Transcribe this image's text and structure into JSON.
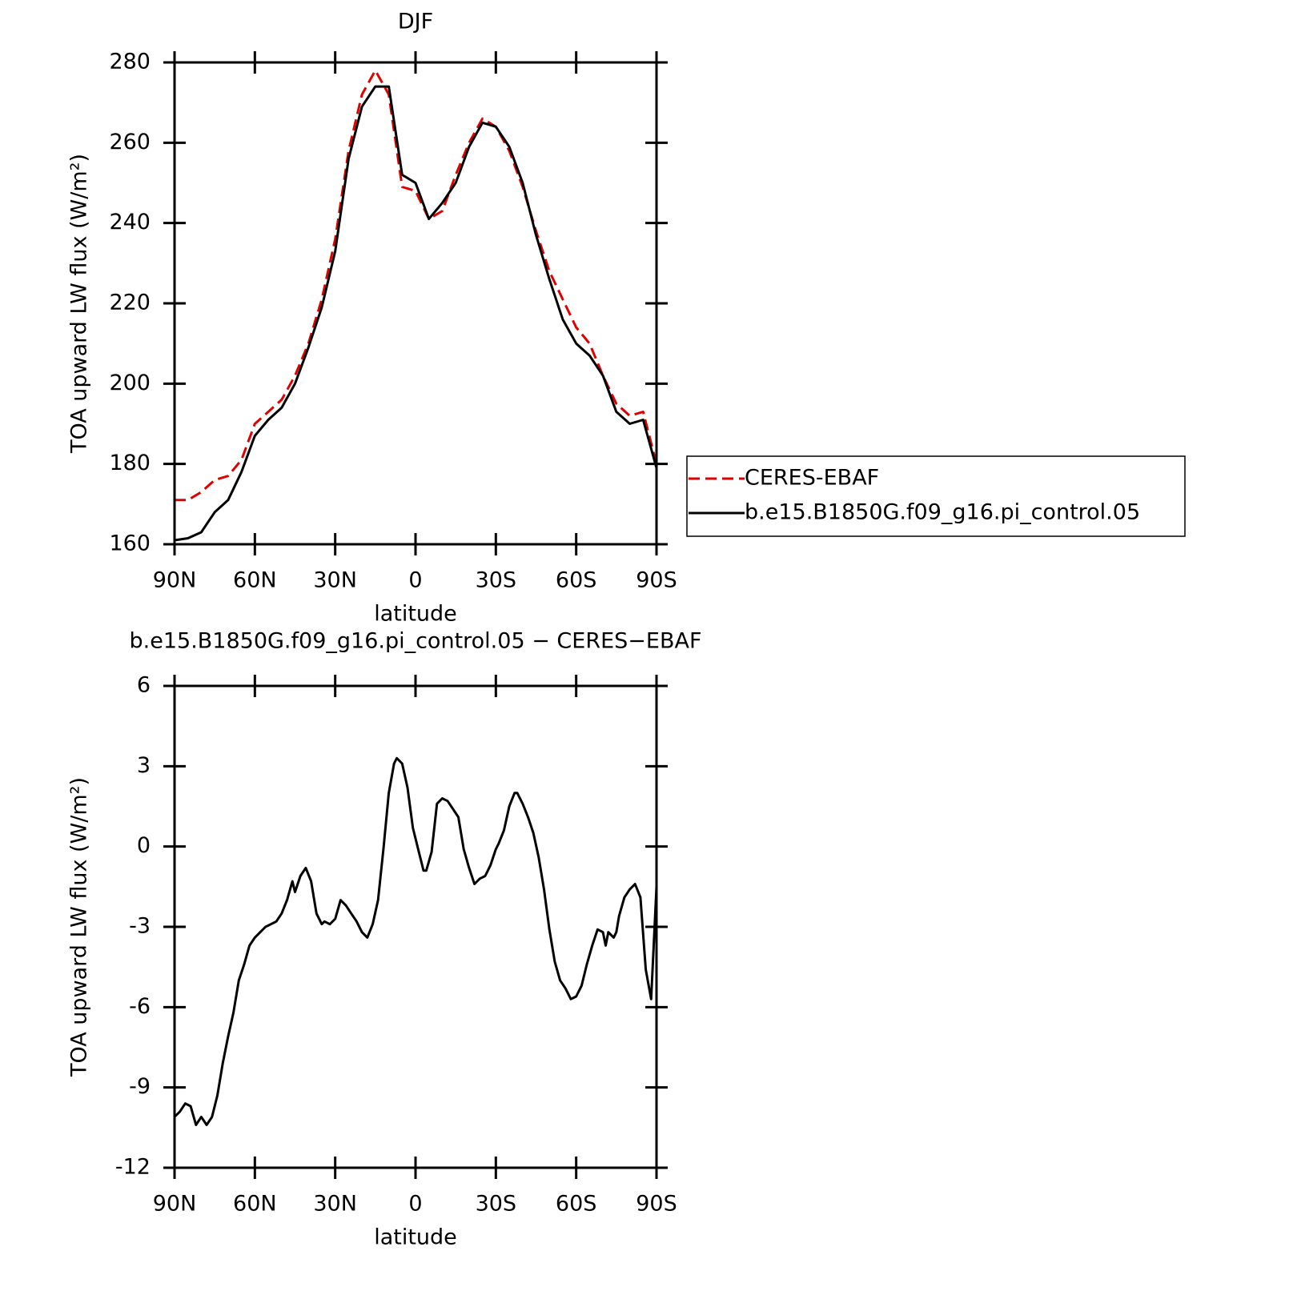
{
  "chart_data": [
    {
      "type": "line",
      "title": "DJF",
      "x_label": "latitude",
      "y_label": "TOA upward LW flux (W/m²)",
      "x": [
        90,
        85,
        80,
        75,
        70,
        65,
        60,
        55,
        50,
        45,
        40,
        35,
        30,
        25,
        20,
        15,
        10,
        5,
        0,
        -5,
        -10,
        -15,
        -20,
        -25,
        -30,
        -35,
        -40,
        -45,
        -50,
        -55,
        -60,
        -65,
        -70,
        -75,
        -80,
        -85,
        -90
      ],
      "series": [
        {
          "name": "CERES-EBAF",
          "color": "#e00000",
          "dashed": true,
          "values": [
            171,
            171,
            173,
            176,
            177,
            181,
            190,
            193,
            196,
            202,
            210,
            221,
            236,
            258,
            272,
            278,
            272,
            249,
            248,
            241,
            243,
            252,
            260,
            266,
            264,
            258,
            249,
            238,
            228,
            221,
            214,
            210,
            202,
            195,
            192,
            193,
            180
          ]
        },
        {
          "name": "b.e15.B1850G.f09_g16.pi_control.05",
          "color": "#000000",
          "dashed": false,
          "values": [
            161,
            161.5,
            163,
            168,
            171,
            178,
            187,
            191,
            194,
            200,
            209,
            219,
            233,
            256,
            269,
            274,
            274,
            252,
            250,
            241,
            245,
            250,
            259,
            265,
            264,
            259,
            250,
            237,
            226,
            216,
            210,
            207,
            202,
            193,
            190,
            191,
            179
          ]
        }
      ],
      "xlim": [
        90,
        -90
      ],
      "xticks": [
        {
          "value": 90,
          "label": "90N"
        },
        {
          "value": 60,
          "label": "60N"
        },
        {
          "value": 30,
          "label": "30N"
        },
        0,
        {
          "value": -30,
          "label": "30S"
        },
        {
          "value": -60,
          "label": "60S"
        },
        {
          "value": -90,
          "label": "90S"
        }
      ],
      "ylim": [
        160,
        280
      ],
      "yticks": [
        160,
        180,
        200,
        220,
        240,
        260,
        280
      ],
      "legend": "right"
    },
    {
      "type": "line",
      "title": "b.e15.B1850G.f09_g16.pi_control.05 − CERES−EBAF",
      "x_label": "latitude",
      "y_label": "TOA upward LW flux (W/m²)",
      "x": [
        90,
        88,
        86,
        84,
        82,
        80,
        78,
        76,
        74,
        72,
        70,
        68,
        66,
        64,
        62,
        60,
        58,
        56,
        54,
        52,
        50,
        48,
        46,
        45,
        43,
        41,
        39,
        37,
        35,
        34,
        32,
        30,
        28,
        26,
        24,
        22,
        20,
        18,
        16,
        14,
        12,
        10,
        8,
        7,
        5,
        3,
        1,
        -1,
        -3,
        -4,
        -6,
        -8,
        -10,
        -12,
        -14,
        -16,
        -18,
        -20,
        -22,
        -24,
        -26,
        -28,
        -30,
        -31,
        -33,
        -35,
        -37,
        -38,
        -40,
        -42,
        -44,
        -46,
        -48,
        -50,
        -52,
        -54,
        -56,
        -58,
        -60,
        -62,
        -64,
        -66,
        -68,
        -70,
        -71,
        -72,
        -74,
        -75,
        -76,
        -78,
        -80,
        -82,
        -84,
        -86,
        -88,
        -90
      ],
      "values": [
        -10.1,
        -9.9,
        -9.6,
        -9.7,
        -10.4,
        -10.1,
        -10.4,
        -10.1,
        -9.3,
        -8.1,
        -7.1,
        -6.2,
        -5.0,
        -4.4,
        -3.7,
        -3.4,
        -3.2,
        -3.0,
        -2.9,
        -2.8,
        -2.5,
        -2.0,
        -1.3,
        -1.7,
        -1.1,
        -0.8,
        -1.3,
        -2.5,
        -2.9,
        -2.8,
        -2.9,
        -2.7,
        -2.0,
        -2.2,
        -2.5,
        -2.8,
        -3.2,
        -3.4,
        -2.9,
        -2.0,
        -0.1,
        2.0,
        3.1,
        3.3,
        3.1,
        2.2,
        0.7,
        -0.1,
        -0.9,
        -0.9,
        -0.2,
        1.6,
        1.8,
        1.7,
        1.4,
        1.1,
        -0.1,
        -0.8,
        -1.4,
        -1.2,
        -1.1,
        -0.7,
        -0.1,
        0.1,
        0.6,
        1.5,
        2.0,
        2.0,
        1.6,
        1.1,
        0.5,
        -0.4,
        -1.6,
        -3.1,
        -4.3,
        -5.0,
        -5.3,
        -5.7,
        -5.6,
        -5.2,
        -4.4,
        -3.7,
        -3.1,
        -3.2,
        -3.7,
        -3.2,
        -3.4,
        -3.2,
        -2.6,
        -1.9,
        -1.6,
        -1.4,
        -1.9,
        -4.6,
        -5.7,
        -1.5
      ],
      "color": "#000000",
      "xlim": [
        90,
        -90
      ],
      "xticks": [
        {
          "value": 90,
          "label": "90N"
        },
        {
          "value": 60,
          "label": "60N"
        },
        {
          "value": 30,
          "label": "30N"
        },
        0,
        {
          "value": -30,
          "label": "30S"
        },
        {
          "value": -60,
          "label": "60S"
        },
        {
          "value": -90,
          "label": "90S"
        }
      ],
      "ylim": [
        -12,
        6
      ],
      "yticks": [
        -12,
        -9,
        -6,
        -3,
        0,
        3,
        6
      ]
    }
  ]
}
